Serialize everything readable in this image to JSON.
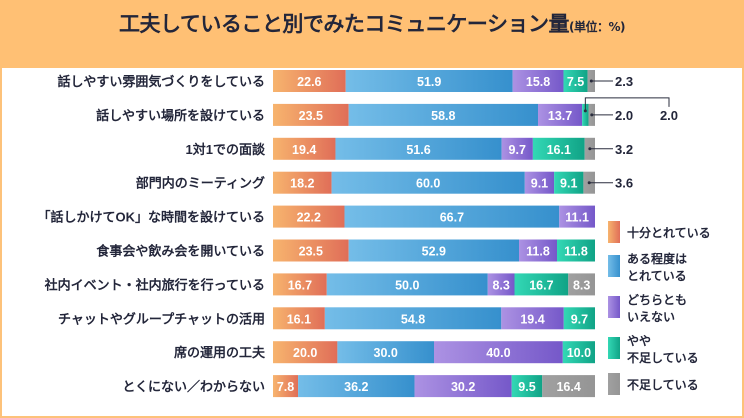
{
  "chart_data": {
    "type": "bar",
    "orientation": "horizontal",
    "stacked": true,
    "title": "工夫していること別でみたコミュニケーション量",
    "unit": "(単位：%)",
    "xlim": [
      0,
      100
    ],
    "grid": false,
    "legend_placement": "right",
    "categories": [
      "話しやすい雰囲気づくりをしている",
      "話しやすい場所を設けている",
      "1対1での面談",
      "部門内のミーティング",
      "「話しかけてOK」な時間を設けている",
      "食事会や飲み会を開いている",
      "社内イベント・社内旅行を行っている",
      "チャットやグループチャットの活用",
      "席の運用の工夫",
      "とくにない／わからない"
    ],
    "series": [
      {
        "name": "十分とれている",
        "color": "#EE915F",
        "values": [
          22.6,
          23.5,
          19.4,
          18.2,
          22.2,
          23.5,
          16.7,
          16.1,
          20.0,
          7.8
        ]
      },
      {
        "name": "ある程度はとれている",
        "color": "#4BA2D9",
        "values": [
          51.9,
          58.8,
          51.6,
          60.0,
          66.7,
          52.9,
          50.0,
          54.8,
          30.0,
          36.2
        ]
      },
      {
        "name": "どちらともいえない",
        "color": "#8C72D6",
        "values": [
          15.8,
          13.7,
          9.7,
          9.1,
          11.1,
          11.8,
          8.3,
          19.4,
          40.0,
          30.2
        ]
      },
      {
        "name": "やや不足している",
        "color": "#1FBF9C",
        "values": [
          7.5,
          2.0,
          16.1,
          9.1,
          0,
          11.8,
          16.7,
          9.7,
          10.0,
          9.5
        ]
      },
      {
        "name": "不足している",
        "color": "#9B9B9B",
        "values": [
          2.3,
          2.0,
          3.2,
          3.6,
          0,
          0,
          8.3,
          0,
          0,
          16.4
        ]
      }
    ],
    "legend": [
      [
        "十分とれている"
      ],
      [
        "ある程度は",
        "とれている"
      ],
      [
        "どちらとも",
        "いえない"
      ],
      [
        "やや",
        "不足している"
      ],
      [
        "不足している"
      ]
    ]
  }
}
